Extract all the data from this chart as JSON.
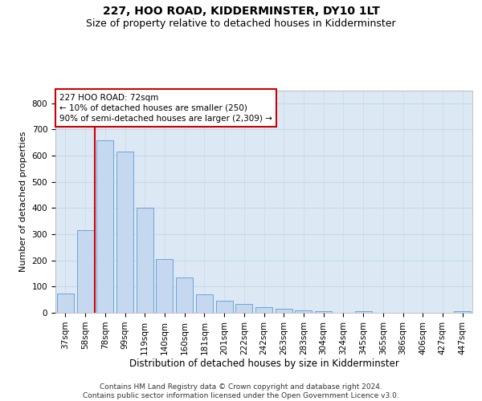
{
  "title": "227, HOO ROAD, KIDDERMINSTER, DY10 1LT",
  "subtitle": "Size of property relative to detached houses in Kidderminster",
  "xlabel": "Distribution of detached houses by size in Kidderminster",
  "ylabel": "Number of detached properties",
  "categories": [
    "37sqm",
    "58sqm",
    "78sqm",
    "99sqm",
    "119sqm",
    "140sqm",
    "160sqm",
    "181sqm",
    "201sqm",
    "222sqm",
    "242sqm",
    "263sqm",
    "283sqm",
    "304sqm",
    "324sqm",
    "345sqm",
    "365sqm",
    "386sqm",
    "406sqm",
    "427sqm",
    "447sqm"
  ],
  "values": [
    75,
    315,
    660,
    615,
    400,
    205,
    135,
    70,
    45,
    35,
    20,
    15,
    10,
    5,
    0,
    5,
    0,
    0,
    0,
    0,
    5
  ],
  "bar_color": "#c5d8f0",
  "bar_edge_color": "#5b9bd5",
  "vline_color": "#cc0000",
  "annotation_text": "227 HOO ROAD: 72sqm\n← 10% of detached houses are smaller (250)\n90% of semi-detached houses are larger (2,309) →",
  "annotation_box_color": "#ffffff",
  "annotation_box_edge": "#cc0000",
  "ylim": [
    0,
    850
  ],
  "yticks": [
    0,
    100,
    200,
    300,
    400,
    500,
    600,
    700,
    800
  ],
  "grid_color": "#c8d8e8",
  "background_color": "#dce9f5",
  "footer": "Contains HM Land Registry data © Crown copyright and database right 2024.\nContains public sector information licensed under the Open Government Licence v3.0.",
  "title_fontsize": 10,
  "subtitle_fontsize": 9,
  "xlabel_fontsize": 8.5,
  "ylabel_fontsize": 8,
  "tick_fontsize": 7.5,
  "annotation_fontsize": 7.5,
  "footer_fontsize": 6.5
}
